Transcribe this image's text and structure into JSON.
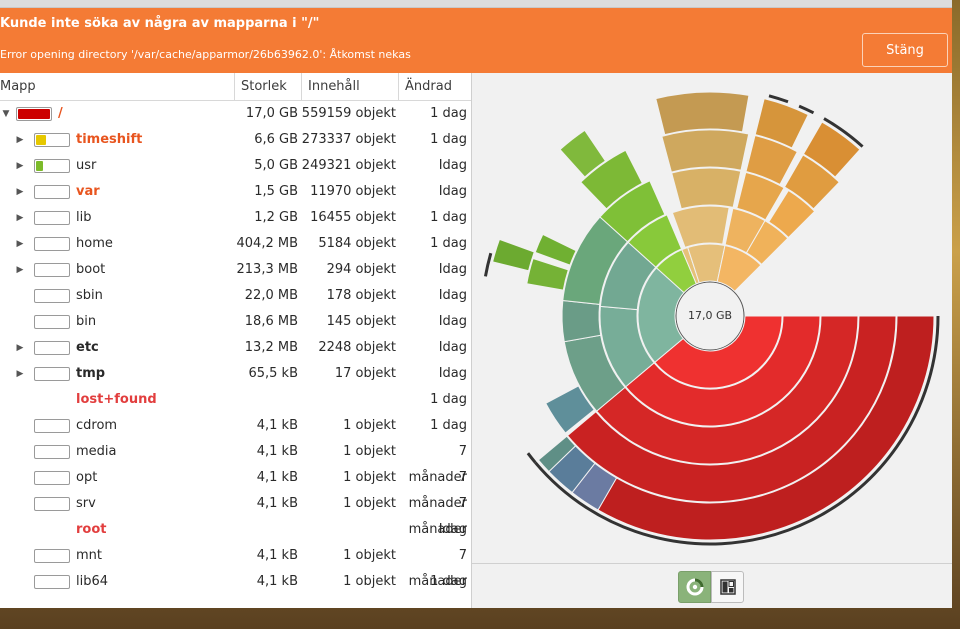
{
  "banner": {
    "title": "Kunde inte söka av några av mapparna i \"/\"",
    "message": "Error opening directory '/var/cache/apparmor/26b63962.0': Åtkomst nekas",
    "close_label": "Stäng",
    "color": "#f47b35"
  },
  "table": {
    "headers": {
      "folder": "Mapp",
      "size": "Storlek",
      "contents": "Innehåll",
      "modified": "Ändrad"
    },
    "rows": [
      {
        "name": "/",
        "size": "17,0 GB",
        "contents": "559159 objekt",
        "modified": "1 dag",
        "expander": "down",
        "bar_fill": 1.0,
        "bar_color": "#cc0000",
        "style": "hl",
        "indent": 0
      },
      {
        "name": "timeshift",
        "size": "6,6 GB",
        "contents": "273337 objekt",
        "modified": "1 dag",
        "expander": "right",
        "bar_fill": 0.39,
        "bar_color": "#e6c800",
        "style": "hl",
        "indent": 1
      },
      {
        "name": "usr",
        "size": "5,0 GB",
        "contents": "249321 objekt",
        "modified": "Idag",
        "expander": "right",
        "bar_fill": 0.29,
        "bar_color": "#7cbb2a",
        "style": "",
        "indent": 1
      },
      {
        "name": "var",
        "size": "1,5 GB",
        "contents": "11970 objekt",
        "modified": "Idag",
        "expander": "right",
        "bar_fill": 0.0,
        "bar_color": "#7cbb2a",
        "style": "hl",
        "indent": 1
      },
      {
        "name": "lib",
        "size": "1,2 GB",
        "contents": "16455 objekt",
        "modified": "1 dag",
        "expander": "right",
        "bar_fill": 0.0,
        "bar_color": "#7cbb2a",
        "style": "",
        "indent": 1
      },
      {
        "name": "home",
        "size": "404,2 MB",
        "contents": "5184 objekt",
        "modified": "1 dag",
        "expander": "right",
        "bar_fill": 0.0,
        "bar_color": "#7cbb2a",
        "style": "",
        "indent": 1
      },
      {
        "name": "boot",
        "size": "213,3 MB",
        "contents": "294 objekt",
        "modified": "Idag",
        "expander": "right",
        "bar_fill": 0.0,
        "bar_color": "#7cbb2a",
        "style": "",
        "indent": 1
      },
      {
        "name": "sbin",
        "size": "22,0 MB",
        "contents": "178 objekt",
        "modified": "Idag",
        "expander": "",
        "bar_fill": 0.0,
        "bar_color": "#7cbb2a",
        "style": "",
        "indent": 1
      },
      {
        "name": "bin",
        "size": "18,6 MB",
        "contents": "145 objekt",
        "modified": "Idag",
        "expander": "",
        "bar_fill": 0.0,
        "bar_color": "#7cbb2a",
        "style": "",
        "indent": 1
      },
      {
        "name": "etc",
        "size": "13,2 MB",
        "contents": "2248 objekt",
        "modified": "Idag",
        "expander": "right",
        "bar_fill": 0.0,
        "bar_color": "#7cbb2a",
        "style": "bold",
        "indent": 1
      },
      {
        "name": "tmp",
        "size": "65,5 kB",
        "contents": "17 objekt",
        "modified": "Idag",
        "expander": "right",
        "bar_fill": 0.0,
        "bar_color": "#7cbb2a",
        "style": "bold",
        "indent": 1
      },
      {
        "name": "lost+found",
        "size": "",
        "contents": "",
        "modified": "1 dag",
        "expander": "",
        "bar_fill": null,
        "bar_color": "",
        "style": "err",
        "indent": 1
      },
      {
        "name": "cdrom",
        "size": "4,1 kB",
        "contents": "1 objekt",
        "modified": "1 dag",
        "expander": "",
        "bar_fill": 0.0,
        "bar_color": "#7cbb2a",
        "style": "",
        "indent": 1
      },
      {
        "name": "media",
        "size": "4,1 kB",
        "contents": "1 objekt",
        "modified": "7 månader",
        "expander": "",
        "bar_fill": 0.0,
        "bar_color": "#7cbb2a",
        "style": "",
        "indent": 1
      },
      {
        "name": "opt",
        "size": "4,1 kB",
        "contents": "1 objekt",
        "modified": "7 månader",
        "expander": "",
        "bar_fill": 0.0,
        "bar_color": "#7cbb2a",
        "style": "",
        "indent": 1
      },
      {
        "name": "srv",
        "size": "4,1 kB",
        "contents": "1 objekt",
        "modified": "7 månader",
        "expander": "",
        "bar_fill": 0.0,
        "bar_color": "#7cbb2a",
        "style": "",
        "indent": 1
      },
      {
        "name": "root",
        "size": "",
        "contents": "",
        "modified": "Idag",
        "expander": "",
        "bar_fill": null,
        "bar_color": "",
        "style": "err",
        "indent": 1
      },
      {
        "name": "mnt",
        "size": "4,1 kB",
        "contents": "1 objekt",
        "modified": "7 månader",
        "expander": "",
        "bar_fill": 0.0,
        "bar_color": "#7cbb2a",
        "style": "",
        "indent": 1
      },
      {
        "name": "lib64",
        "size": "4,1 kB",
        "contents": "1 objekt",
        "modified": "1 dag",
        "expander": "",
        "bar_fill": 0.0,
        "bar_color": "#7cbb2a",
        "style": "",
        "indent": 1
      }
    ]
  },
  "chart": {
    "center_label": "17,0 GB",
    "colors": {
      "timeshift": "#d9262a",
      "usr": "#7fb5a0",
      "var": "#8ccc3a",
      "lib": "#e0b870",
      "other": "#f2b463"
    }
  },
  "toolbar": {
    "ring_chart_icon": "ring-chart-icon",
    "treemap_icon": "treemap-icon"
  }
}
